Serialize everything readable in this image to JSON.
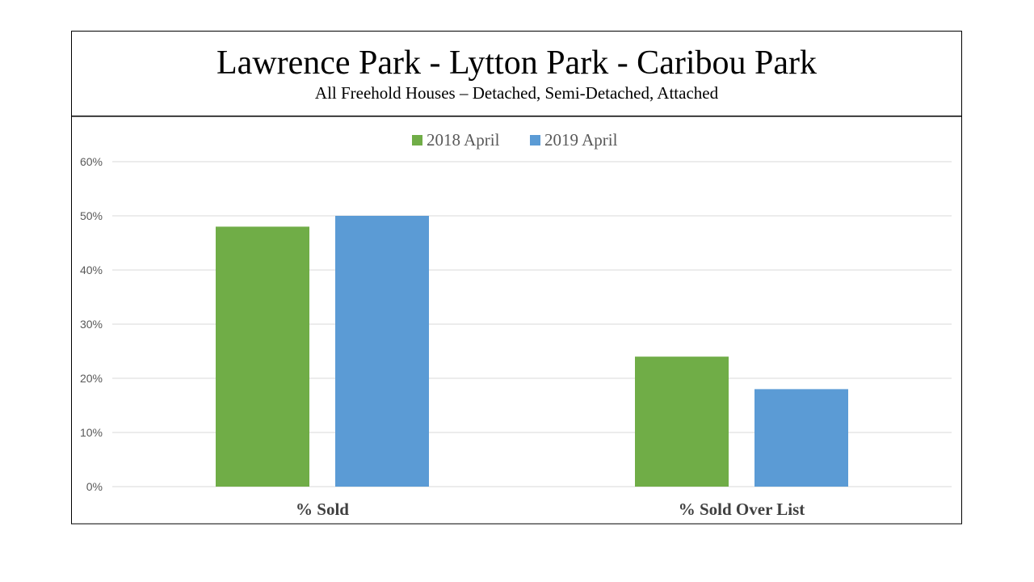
{
  "header": {
    "title": "Lawrence Park - Lytton Park - Caribou Park",
    "subtitle": "All Freehold Houses – Detached, Semi-Detached, Attached"
  },
  "chart_data": {
    "type": "bar",
    "categories": [
      "% Sold",
      "% Sold Over List"
    ],
    "series": [
      {
        "name": "2018 April",
        "color": "#70AD47",
        "values": [
          48,
          24
        ]
      },
      {
        "name": "2019 April",
        "color": "#5B9BD5",
        "values": [
          50,
          18
        ]
      }
    ],
    "y_ticks": [
      "0%",
      "10%",
      "20%",
      "30%",
      "40%",
      "50%",
      "60%"
    ],
    "ylim": [
      0,
      60
    ],
    "grid": true,
    "legend": "top-center"
  }
}
